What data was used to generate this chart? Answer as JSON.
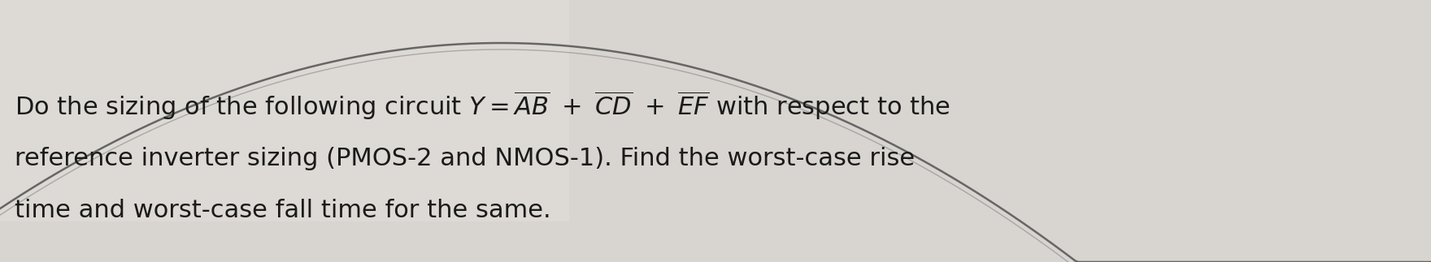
{
  "figsize": [
    17.6,
    3.23
  ],
  "dpi": 100,
  "bg_color": "#c8c4bf",
  "text_color": "#1a1a1a",
  "line1": "Do the sizing of the following circuit $Y = \\overline{AB} + \\overline{CD} + \\overline{EF}$ with respect to the",
  "line2": "reference inverter sizing (PMOS-2 and NMOS-1). Find the worst-case rise",
  "line3": "time and worst-case fall time for the same.",
  "font_size": 22,
  "curve_color": "#777777",
  "left_bg": "#e8e6e2",
  "right_bg": "#c0bdb8"
}
